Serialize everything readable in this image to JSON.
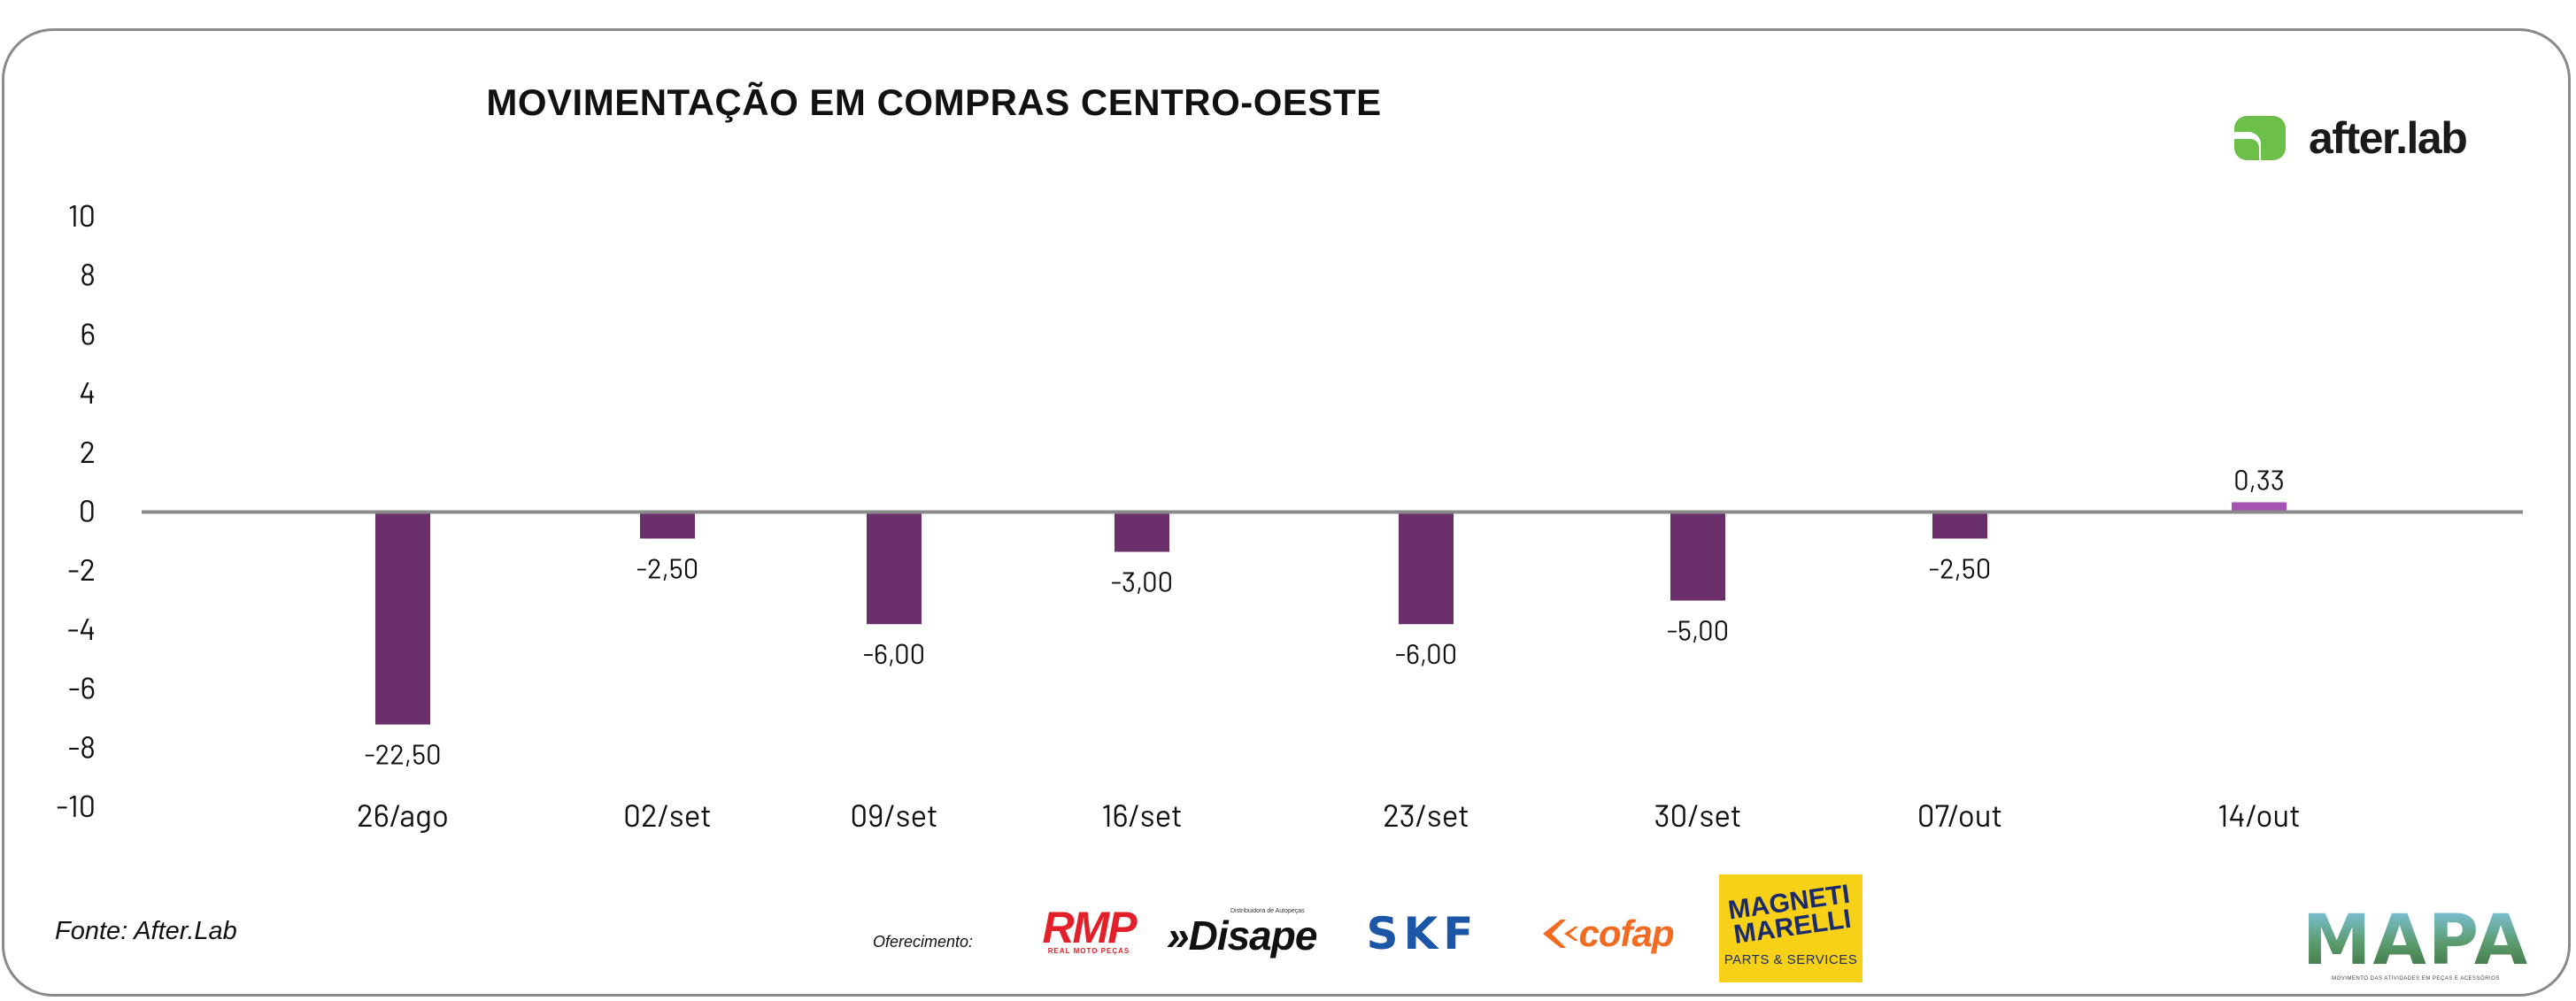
{
  "chart_data": {
    "type": "bar",
    "title": "MOVIMENTAÇÃO EM COMPRAS CENTRO-OESTE",
    "categories": [
      "26/ago",
      "02/set",
      "09/set",
      "16/set",
      "23/set",
      "30/set",
      "07/out",
      "14/out"
    ],
    "values": [
      -22.5,
      -2.5,
      -6.0,
      -3.0,
      -6.0,
      -5.0,
      -2.5,
      0.33
    ],
    "bar_heights_on_axis": [
      -7.2,
      -0.9,
      -3.8,
      -1.35,
      -3.8,
      -3.0,
      -0.9,
      0.33
    ],
    "value_labels": [
      "-22,50",
      "-2,50",
      "-6,00",
      "-3,00",
      "-6,00",
      "-5,00",
      "-2,50",
      "0,33"
    ],
    "y_ticks": [
      10,
      8,
      6,
      4,
      2,
      0,
      -2,
      -4,
      -6,
      -8,
      -10
    ],
    "ylim": [
      -10,
      10
    ],
    "xlabel": "",
    "ylabel": "",
    "grid": false,
    "legend": "none",
    "colors": {
      "negative": "#6b2f6b",
      "positive": "#a453b4",
      "zero_line": "#8a8a8a"
    }
  },
  "brand": {
    "name": "after.lab",
    "color_green": "#6cc04a"
  },
  "footer": {
    "source": "Fonte: After.Lab",
    "sponsor_label": "Oferecimento:",
    "sponsors": {
      "rmp": {
        "name": "RMP",
        "tagline": "REAL MOTO PEÇAS"
      },
      "disape": {
        "name": "Disape",
        "tagline": "Distribuidora de Autopeças"
      },
      "skf": {
        "name": "SKF"
      },
      "cofap": {
        "name": "cofap"
      },
      "magneti": {
        "name": "MAGNETI MARELLI",
        "tagline": "PARTS & SERVICES"
      },
      "mapa": {
        "name": "MAPA",
        "tagline": "MOVIMENTO DAS ATIVIDADES EM PEÇAS E ACESSÓRIOS"
      }
    }
  }
}
